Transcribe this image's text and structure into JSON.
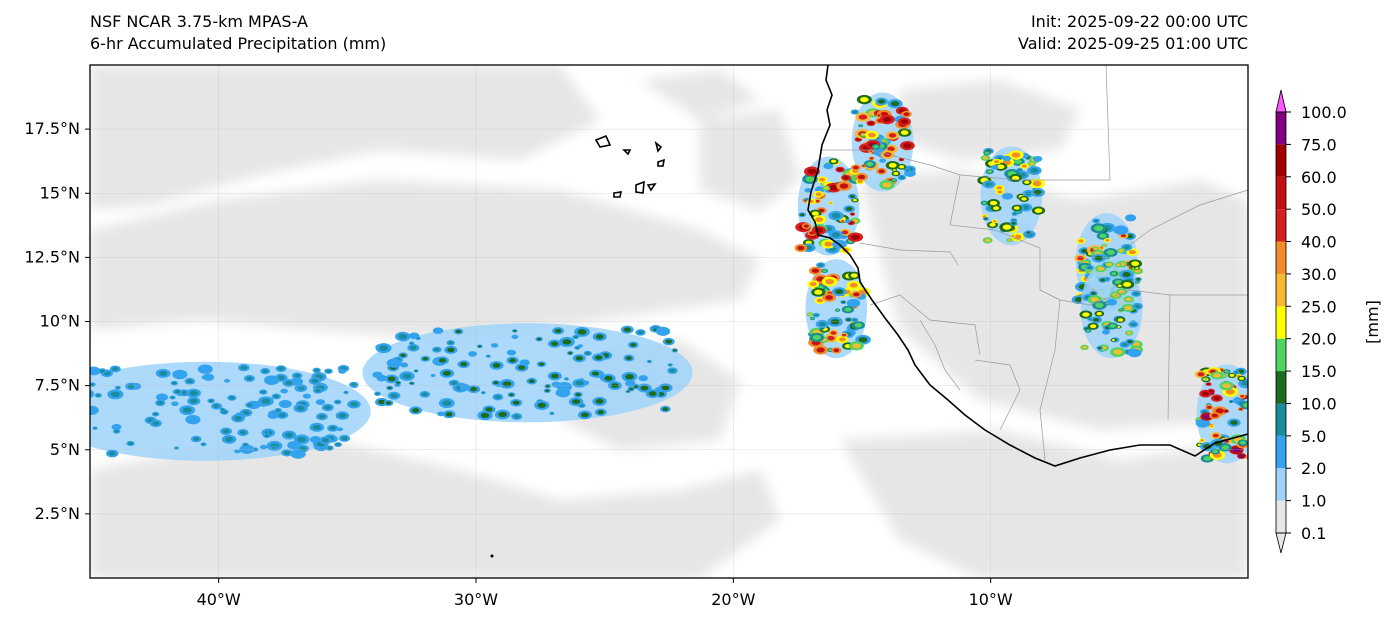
{
  "header": {
    "model_line": "NSF NCAR 3.75-km MPAS-A",
    "field_line": "6-hr Accumulated Precipitation (mm)",
    "init_line": "Init: 2025-09-22 00:00 UTC",
    "valid_line": "Valid: 2025-09-25 01:00 UTC"
  },
  "map": {
    "lon_range": [
      -45,
      0
    ],
    "lat_range": [
      0,
      20
    ],
    "lat_ticks": [
      {
        "value": 2.5,
        "label": "2.5°N"
      },
      {
        "value": 5,
        "label": "5°N"
      },
      {
        "value": 7.5,
        "label": "7.5°N"
      },
      {
        "value": 10,
        "label": "10°N"
      },
      {
        "value": 12.5,
        "label": "12.5°N"
      },
      {
        "value": 15,
        "label": "15°N"
      },
      {
        "value": 17.5,
        "label": "17.5°N"
      }
    ],
    "lon_ticks": [
      {
        "value": -40,
        "label": "40°W"
      },
      {
        "value": -30,
        "label": "30°W"
      },
      {
        "value": -20,
        "label": "20°W"
      },
      {
        "value": -10,
        "label": "10°W"
      }
    ],
    "gridlines": true
  },
  "colorbar": {
    "unit_label": "[mm]",
    "levels": [
      "0.1",
      "1.0",
      "2.0",
      "5.0",
      "10.0",
      "15.0",
      "20.0",
      "25.0",
      "30.0",
      "40.0",
      "50.0",
      "60.0",
      "75.0",
      "100.0"
    ],
    "colors": [
      "#e6e6e6",
      "#9fd2fa",
      "#33a2ef",
      "#1a8c9a",
      "#1d6b1d",
      "#4fd45f",
      "#ffff00",
      "#f6bb32",
      "#f28c28",
      "#d71f1f",
      "#c01010",
      "#a00000",
      "#800080",
      "#ff55ff"
    ]
  },
  "precip_clusters": [
    {
      "name": "itcz-west",
      "lon": -40.5,
      "lat": 6.5,
      "level": 3
    },
    {
      "name": "itcz-central",
      "lon": -28,
      "lat": 8,
      "level": 4
    },
    {
      "name": "coastal-senegal",
      "lon": -16.3,
      "lat": 14.5,
      "level": 11
    },
    {
      "name": "coastal-guinea",
      "lon": -16,
      "lat": 10.5,
      "level": 10
    },
    {
      "name": "mauritania-cell",
      "lon": -14.2,
      "lat": 17,
      "level": 11
    },
    {
      "name": "mali-west-cell",
      "lon": -9.2,
      "lat": 14.9,
      "level": 8
    },
    {
      "name": "mali-south-cell",
      "lon": -5.5,
      "lat": 12.3,
      "level": 9
    },
    {
      "name": "burkina-cell",
      "lon": -5.3,
      "lat": 10.5,
      "level": 7
    },
    {
      "name": "ghana-coast-cell",
      "lon": -0.8,
      "lat": 6.4,
      "level": 12
    }
  ]
}
